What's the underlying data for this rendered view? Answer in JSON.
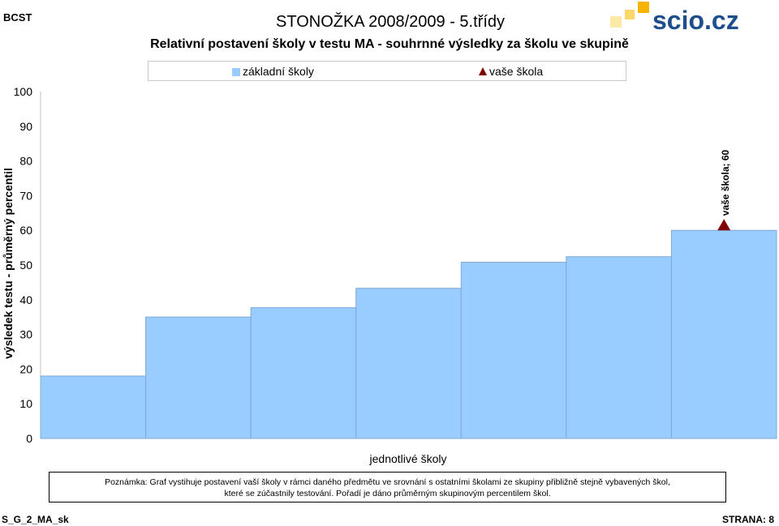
{
  "header": {
    "badge": "BCST",
    "title": "STONOŽKA 2008/2009 - 5.třídy",
    "logo_text": "scio.cz"
  },
  "chart_data": {
    "type": "bar",
    "title": "Relativní postavení školy v testu MA - souhrnné výsledky za školu  ve skupině",
    "xlabel": "jednotlivé školy",
    "ylabel": "výsledek testu - průměrný percentil",
    "ylim": [
      0,
      100
    ],
    "yticks": [
      0,
      10,
      20,
      30,
      40,
      50,
      60,
      70,
      80,
      90,
      100
    ],
    "grid": false,
    "legend_position": "top",
    "series": [
      {
        "name": "základní školy",
        "values": [
          18,
          35,
          37.7,
          43.3,
          50.8,
          52.4,
          60
        ],
        "color": "#99ccff"
      }
    ],
    "marker_series": {
      "name": "vaše škola",
      "category_index": 6,
      "value": 60,
      "label": "vaše škola; 60",
      "color": "#800000"
    }
  },
  "note": {
    "line1": "Poznámka: Graf vystihuje postavení vaší školy v rámci daného předmětu ve srovnání s ostatními školami ze skupiny přibližně stejně vybavených škol,",
    "line2": "které se zúčastnily testování. Pořadí je dáno průměrným skupinovým percentilem škol."
  },
  "footer": {
    "left": "S_G_2_MA_sk",
    "right": "STRANA: 8"
  }
}
